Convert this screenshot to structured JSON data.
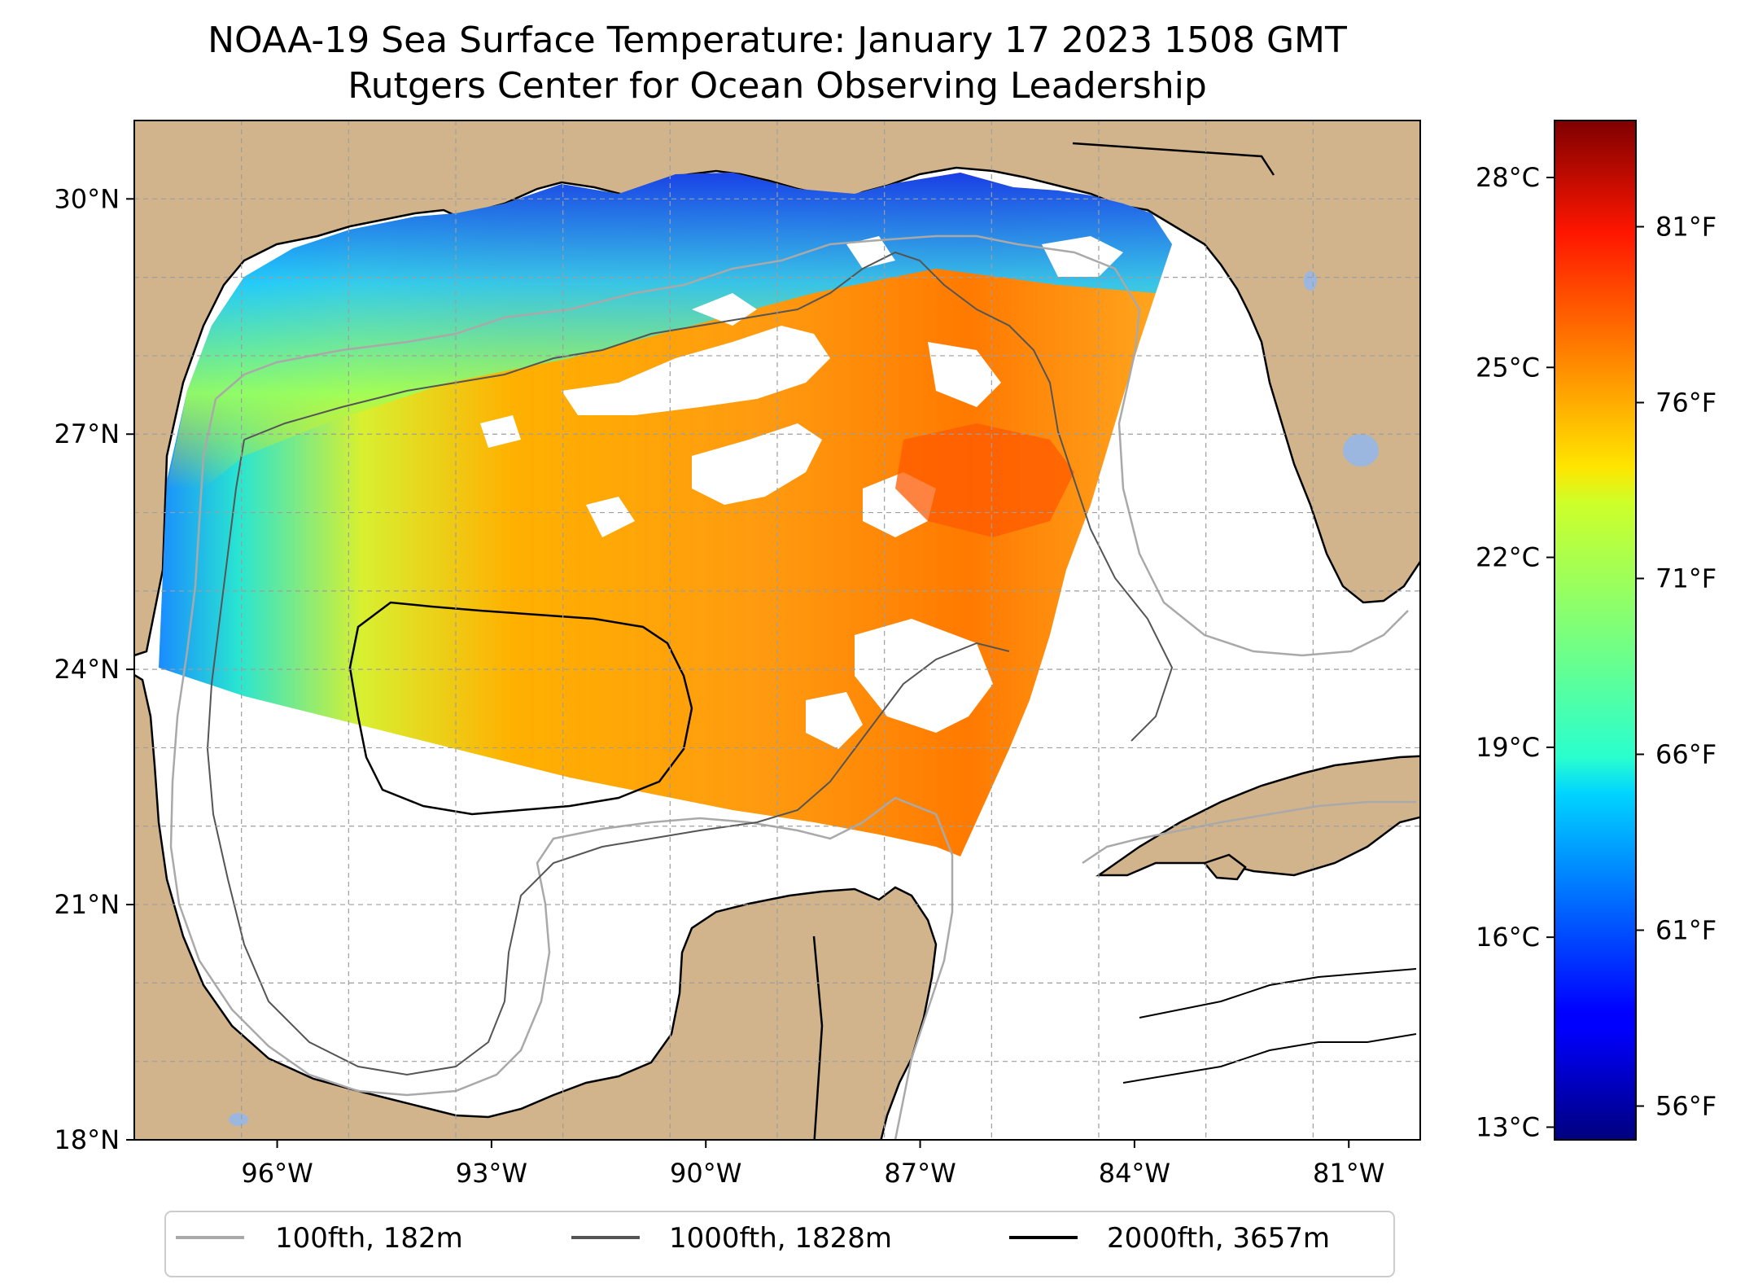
{
  "title": {
    "line1": "NOAA-19 Sea Surface Temperature: January 17 2023 1508 GMT",
    "line2": "Rutgers Center for Ocean Observing Leadership"
  },
  "map": {
    "lon_range": [
      -98.0,
      -80.0
    ],
    "lat_range": [
      18.0,
      31.0
    ],
    "lon_ticks": [
      {
        "value": -96,
        "label": "96°W"
      },
      {
        "value": -93,
        "label": "93°W"
      },
      {
        "value": -90,
        "label": "90°W"
      },
      {
        "value": -87,
        "label": "87°W"
      },
      {
        "value": -84,
        "label": "84°W"
      },
      {
        "value": -81,
        "label": "81°W"
      }
    ],
    "lat_ticks": [
      {
        "value": 18,
        "label": "18°N"
      },
      {
        "value": 21,
        "label": "21°N"
      },
      {
        "value": 24,
        "label": "24°N"
      },
      {
        "value": 27,
        "label": "27°N"
      },
      {
        "value": 30,
        "label": "30°N"
      }
    ],
    "grid": true,
    "colors": {
      "land": "#d2b48c",
      "lakes": "#9bb7e0",
      "ocean_nodata": "#ffffff",
      "contour_100fth": "#a9a9a9",
      "contour_1000fth": "#555555",
      "contour_2000fth": "#000000"
    }
  },
  "colorbar": {
    "colormap": "jet",
    "range_c": [
      12.8,
      28.9
    ],
    "celsius_ticks": [
      {
        "value": 13,
        "label": "13°C"
      },
      {
        "value": 16,
        "label": "16°C"
      },
      {
        "value": 19,
        "label": "19°C"
      },
      {
        "value": 22,
        "label": "22°C"
      },
      {
        "value": 25,
        "label": "25°C"
      },
      {
        "value": 28,
        "label": "28°C"
      }
    ],
    "fahrenheit_ticks": [
      {
        "value": 56,
        "label": "56°F"
      },
      {
        "value": 61,
        "label": "61°F"
      },
      {
        "value": 66,
        "label": "66°F"
      },
      {
        "value": 71,
        "label": "71°F"
      },
      {
        "value": 76,
        "label": "76°F"
      },
      {
        "value": 81,
        "label": "81°F"
      }
    ]
  },
  "legend": {
    "items": [
      {
        "label": "100fth, 182m",
        "color": "#a9a9a9"
      },
      {
        "label": "1000fth, 1828m",
        "color": "#555555"
      },
      {
        "label": "2000fth, 3657m",
        "color": "#000000"
      }
    ]
  }
}
